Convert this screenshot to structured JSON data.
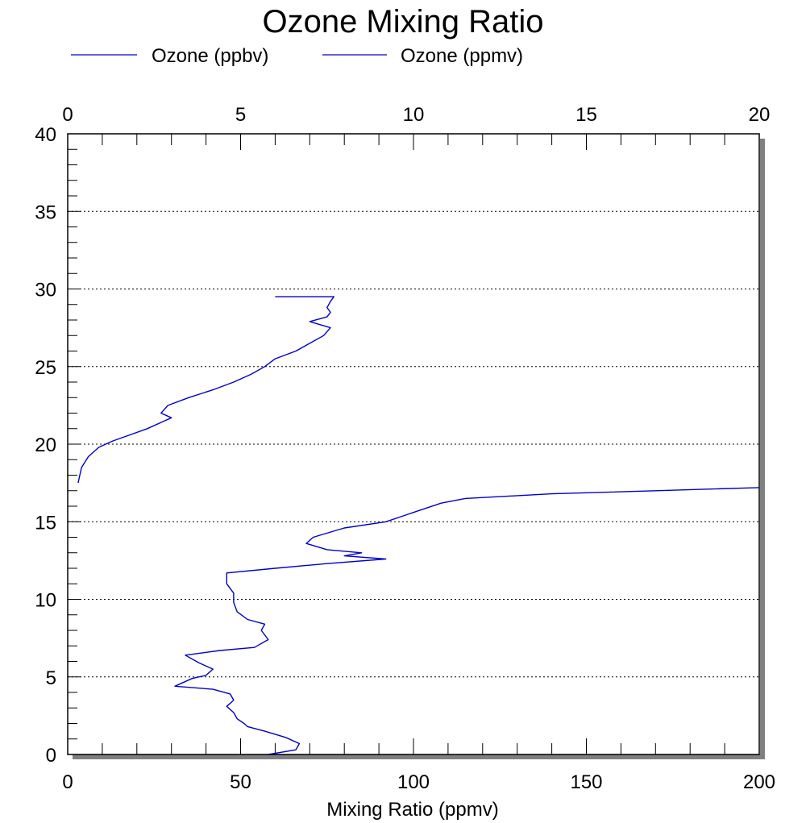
{
  "chart_data": {
    "type": "line",
    "title": "Ozone Mixing Ratio",
    "xlabel": "Mixing Ratio (ppmv)",
    "ylabel": "",
    "bottom_axis": {
      "range": [
        0,
        200
      ],
      "ticks": [
        "0",
        "50",
        "100",
        "150",
        "200"
      ]
    },
    "top_axis": {
      "range": [
        0,
        20
      ],
      "ticks": [
        "0",
        "5",
        "10",
        "15",
        "20"
      ]
    },
    "ylim": [
      0,
      40
    ],
    "y_ticks": [
      "0",
      "5",
      "10",
      "15",
      "20",
      "25",
      "30",
      "35",
      "40"
    ],
    "grid": "horizontal dotted",
    "legend_placement": "top-left",
    "series": [
      {
        "name": "Ozone (ppbv)",
        "color": "#0000cc",
        "axis": "bottom",
        "points": [
          [
            58,
            0.0
          ],
          [
            66,
            0.3
          ],
          [
            67,
            0.7
          ],
          [
            63,
            1.1
          ],
          [
            57,
            1.5
          ],
          [
            52,
            1.8
          ],
          [
            51,
            2.0
          ],
          [
            49,
            2.3
          ],
          [
            48,
            2.7
          ],
          [
            46,
            3.1
          ],
          [
            48,
            3.5
          ],
          [
            47,
            3.9
          ],
          [
            42,
            4.2
          ],
          [
            31,
            4.4
          ],
          [
            36,
            4.9
          ],
          [
            40,
            5.1
          ],
          [
            42,
            5.5
          ],
          [
            38,
            5.9
          ],
          [
            34,
            6.4
          ],
          [
            44,
            6.7
          ],
          [
            54,
            6.9
          ],
          [
            58,
            7.4
          ],
          [
            56,
            8.0
          ],
          [
            57,
            8.4
          ],
          [
            52,
            8.7
          ],
          [
            49,
            9.2
          ],
          [
            48,
            9.8
          ],
          [
            48,
            10.4
          ],
          [
            46,
            11.0
          ],
          [
            46,
            11.7
          ],
          [
            60,
            12.0
          ],
          [
            75,
            12.3
          ],
          [
            92,
            12.6
          ],
          [
            80,
            12.8
          ],
          [
            85,
            13.0
          ],
          [
            75,
            13.2
          ],
          [
            69,
            13.6
          ],
          [
            71,
            14.0
          ],
          [
            80,
            14.6
          ],
          [
            92,
            15.0
          ],
          [
            100,
            15.6
          ],
          [
            108,
            16.2
          ],
          [
            115,
            16.5
          ],
          [
            140,
            16.8
          ],
          [
            170,
            17.0
          ],
          [
            200,
            17.2
          ]
        ]
      },
      {
        "name": "Ozone (ppmv)",
        "color": "#0000cc",
        "axis": "top",
        "points": [
          [
            0.3,
            17.5
          ],
          [
            0.35,
            18.0
          ],
          [
            0.4,
            18.5
          ],
          [
            0.6,
            19.2
          ],
          [
            0.9,
            19.8
          ],
          [
            1.3,
            20.2
          ],
          [
            1.8,
            20.6
          ],
          [
            2.3,
            21.0
          ],
          [
            2.8,
            21.5
          ],
          [
            3.0,
            21.7
          ],
          [
            2.7,
            22.0
          ],
          [
            2.9,
            22.5
          ],
          [
            3.5,
            23.0
          ],
          [
            4.2,
            23.5
          ],
          [
            4.8,
            24.0
          ],
          [
            5.3,
            24.5
          ],
          [
            5.7,
            25.0
          ],
          [
            6.0,
            25.5
          ],
          [
            6.6,
            26.0
          ],
          [
            7.0,
            26.5
          ],
          [
            7.4,
            27.0
          ],
          [
            7.6,
            27.5
          ],
          [
            7.0,
            27.9
          ],
          [
            7.5,
            28.2
          ],
          [
            7.6,
            28.5
          ],
          [
            7.5,
            28.8
          ],
          [
            7.6,
            29.2
          ],
          [
            7.7,
            29.5
          ],
          [
            6.0,
            29.5
          ]
        ]
      }
    ]
  }
}
